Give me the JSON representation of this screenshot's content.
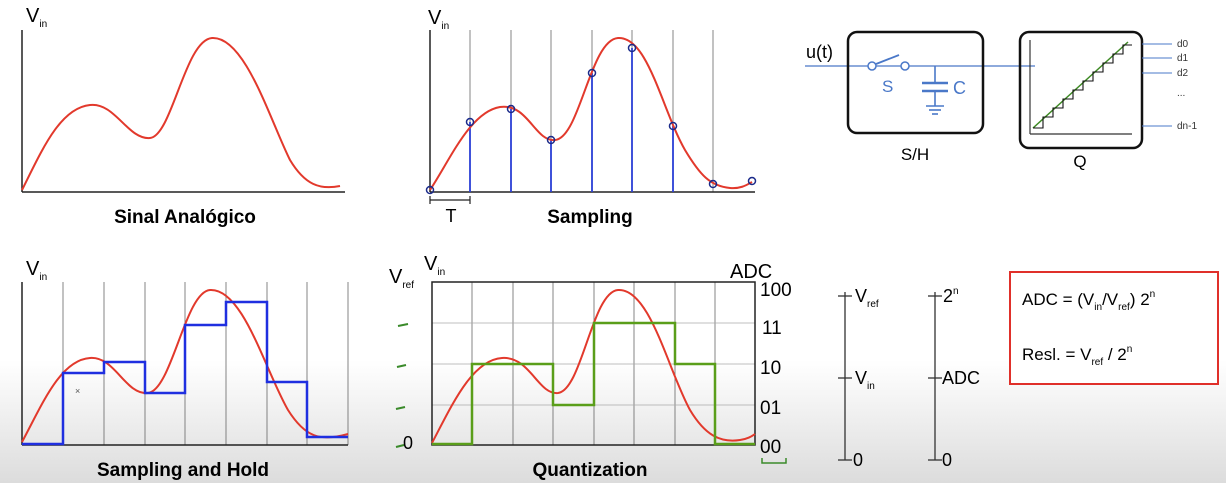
{
  "panels": {
    "analog": {
      "y_label": "V",
      "y_label_sub": "in",
      "caption": "Sinal Analógico"
    },
    "sampling": {
      "y_label": "V",
      "y_label_sub": "in",
      "period_label": "T",
      "caption": "Sampling"
    },
    "block": {
      "input_label": "u(t)",
      "switch_label": "S",
      "cap_label": "C",
      "sh_label": "S/H",
      "q_label": "Q",
      "outputs": [
        "d0",
        "d1",
        "d2",
        "...",
        "dn-1"
      ]
    },
    "hold": {
      "y_label": "V",
      "y_label_sub": "in",
      "caption": "Sampling and Hold"
    },
    "quant": {
      "vref_label": "V",
      "vref_sub": "ref",
      "vin_label": "V",
      "vin_sub": "in",
      "adc_label": "ADC",
      "zero_label": "0",
      "codes": [
        "100",
        "11",
        "10",
        "01",
        "00"
      ],
      "caption": "Quantization"
    },
    "scale": {
      "vref": "V",
      "vref_sub": "ref",
      "vin": "V",
      "vin_sub": "in",
      "zero_left": "0",
      "two_n": "2",
      "two_n_sup": "n",
      "adc": "ADC",
      "zero_right": "0"
    },
    "formula": {
      "line1_prefix": "ADC = (V",
      "line1_sub1": "in",
      "line1_mid": "/V",
      "line1_sub2": "ref",
      "line1_suffix": ") 2",
      "line1_sup": "n",
      "line2_prefix": "Resl. = V",
      "line2_sub": "ref",
      "line2_mid": " / 2",
      "line2_sup": "n",
      "border_color": "#e0302a"
    }
  },
  "colors": {
    "signal": "#e2392c",
    "sample": "#2a3fd6",
    "hold": "#1f2fe0",
    "quant": "#5a9e1a",
    "block_line": "#4a78c8",
    "grid": "#555555"
  }
}
